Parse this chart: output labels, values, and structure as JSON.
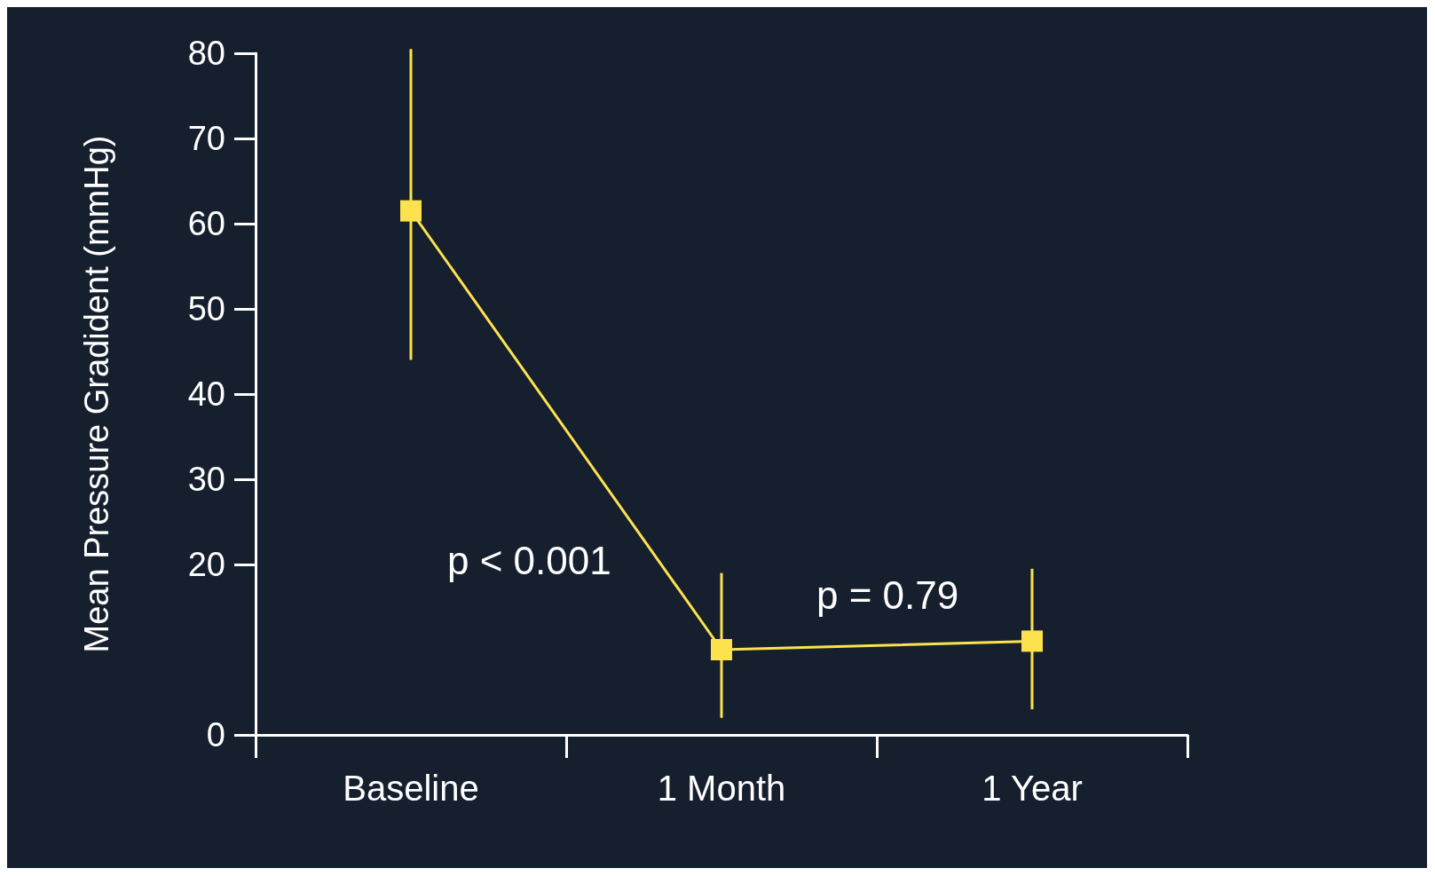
{
  "chart_data": {
    "type": "line",
    "ylabel": "Mean Pressure Gradident (mmHg)",
    "categories": [
      "Baseline",
      "1 Month",
      "1 Year"
    ],
    "series": [
      {
        "color": "#fde24e",
        "values": [
          61.5,
          10,
          11
        ],
        "errors": [
          [
            44,
            80.5
          ],
          [
            2,
            19
          ],
          [
            3,
            19.5
          ]
        ]
      }
    ],
    "ylim": [
      0,
      80
    ],
    "yticks": [
      0,
      20,
      30,
      40,
      50,
      60,
      70,
      80
    ],
    "marker": "square",
    "grid": false,
    "annotations": [
      "p < 0.001",
      "p = 0.79"
    ]
  }
}
